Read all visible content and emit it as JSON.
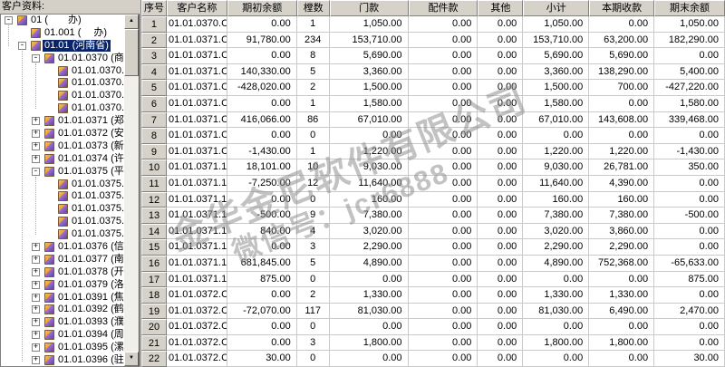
{
  "panel": {
    "title": "客户资料:"
  },
  "tree": {
    "items": [
      {
        "label": "01 (　　办)",
        "level": 0,
        "expand": "minus",
        "selected": false
      },
      {
        "label": "01.001 (　 办)",
        "level": 1,
        "expand": "none",
        "selected": false
      },
      {
        "label": "01.01 (河南省)",
        "level": 1,
        "expand": "minus",
        "selected": true
      },
      {
        "label": "01.01.0370 (商",
        "level": 2,
        "expand": "minus",
        "selected": false
      },
      {
        "label": "01.01.0370.",
        "level": 3,
        "expand": "none",
        "selected": false
      },
      {
        "label": "01.01.0370.",
        "level": 3,
        "expand": "none",
        "selected": false
      },
      {
        "label": "01.01.0370.",
        "level": 3,
        "expand": "none",
        "selected": false
      },
      {
        "label": "01.01.0370.",
        "level": 3,
        "expand": "none",
        "selected": false
      },
      {
        "label": "01.01.0371 (郑",
        "level": 2,
        "expand": "plus",
        "selected": false
      },
      {
        "label": "01.01.0372 (安",
        "level": 2,
        "expand": "plus",
        "selected": false
      },
      {
        "label": "01.01.0373 (新",
        "level": 2,
        "expand": "plus",
        "selected": false
      },
      {
        "label": "01.01.0374 (许",
        "level": 2,
        "expand": "plus",
        "selected": false
      },
      {
        "label": "01.01.0375 (平",
        "level": 2,
        "expand": "minus",
        "selected": false
      },
      {
        "label": "01.01.0375.",
        "level": 3,
        "expand": "none",
        "selected": false
      },
      {
        "label": "01.01.0375.",
        "level": 3,
        "expand": "none",
        "selected": false
      },
      {
        "label": "01.01.0375.",
        "level": 3,
        "expand": "none",
        "selected": false
      },
      {
        "label": "01.01.0375.",
        "level": 3,
        "expand": "none",
        "selected": false
      },
      {
        "label": "01.01.0375.",
        "level": 3,
        "expand": "none",
        "selected": false
      },
      {
        "label": "01.01.0376 (信",
        "level": 2,
        "expand": "plus",
        "selected": false
      },
      {
        "label": "01.01.0377 (南",
        "level": 2,
        "expand": "plus",
        "selected": false
      },
      {
        "label": "01.01.0378 (开",
        "level": 2,
        "expand": "plus",
        "selected": false
      },
      {
        "label": "01.01.0379 (洛",
        "level": 2,
        "expand": "plus",
        "selected": false
      },
      {
        "label": "01.01.0391 (焦",
        "level": 2,
        "expand": "plus",
        "selected": false
      },
      {
        "label": "01.01.0392 (鹤",
        "level": 2,
        "expand": "plus",
        "selected": false
      },
      {
        "label": "01.01.0393 (濮",
        "level": 2,
        "expand": "plus",
        "selected": false
      },
      {
        "label": "01.01.0394 (周",
        "level": 2,
        "expand": "plus",
        "selected": false
      },
      {
        "label": "01.01.0395 (漯",
        "level": 2,
        "expand": "plus",
        "selected": false
      },
      {
        "label": "01.01.0396 (驻",
        "level": 2,
        "expand": "plus",
        "selected": false
      }
    ]
  },
  "table": {
    "columns": [
      "序号",
      "客户名称",
      "期初余额",
      "樘数",
      "门款",
      "配件款",
      "其他",
      "小计",
      "本期收款",
      "期末余额"
    ],
    "rows": [
      [
        "1",
        "01.01.0370.C",
        "0.00",
        "1",
        "1,050.00",
        "0.00",
        "0.00",
        "1,050.00",
        "0.00",
        "1,050.00"
      ],
      [
        "2",
        "01.01.0371.C",
        "91,780.00",
        "234",
        "153,710.00",
        "0.00",
        "0.00",
        "153,710.00",
        "63,200.00",
        "182,290.00"
      ],
      [
        "3",
        "01.01.0371.C",
        "0.00",
        "8",
        "5,690.00",
        "0.00",
        "0.00",
        "5,690.00",
        "5,690.00",
        "0.00"
      ],
      [
        "4",
        "01.01.0371.C",
        "140,330.00",
        "5",
        "3,360.00",
        "0.00",
        "0.00",
        "3,360.00",
        "138,290.00",
        "5,400.00"
      ],
      [
        "5",
        "01.01.0371.C",
        "-428,020.00",
        "2",
        "1,500.00",
        "0.00",
        "0.00",
        "1,500.00",
        "700.00",
        "-427,220.00"
      ],
      [
        "6",
        "01.01.0371.C",
        "0.00",
        "1",
        "1,580.00",
        "0.00",
        "0.00",
        "1,580.00",
        "0.00",
        "1,580.00"
      ],
      [
        "7",
        "01.01.0371.C",
        "416,066.00",
        "86",
        "67,010.00",
        "0.00",
        "0.00",
        "67,010.00",
        "143,608.00",
        "339,468.00"
      ],
      [
        "8",
        "01.01.0371.C",
        "0.00",
        "0",
        "0.00",
        "0.00",
        "0.00",
        "0.00",
        "0.00",
        "0.00"
      ],
      [
        "9",
        "01.01.0371.C",
        "-1,430.00",
        "1",
        "1,220.00",
        "0.00",
        "0.00",
        "1,220.00",
        "1,220.00",
        "-1,430.00"
      ],
      [
        "10",
        "01.01.0371.1",
        "18,101.00",
        "10",
        "9,030.00",
        "0.00",
        "0.00",
        "9,030.00",
        "26,781.00",
        "350.00"
      ],
      [
        "11",
        "01.01.0371.1",
        "-7,250.00",
        "12",
        "11,640.00",
        "0.00",
        "0.00",
        "11,640.00",
        "4,390.00",
        "0.00"
      ],
      [
        "12",
        "01.01.0371.1",
        "0.00",
        "0",
        "160.00",
        "0.00",
        "0.00",
        "160.00",
        "160.00",
        "0.00"
      ],
      [
        "13",
        "01.01.0371.1",
        "-500.00",
        "9",
        "7,380.00",
        "0.00",
        "0.00",
        "7,380.00",
        "7,380.00",
        "-500.00"
      ],
      [
        "14",
        "01.01.0371.1",
        "840.00",
        "4",
        "3,020.00",
        "0.00",
        "0.00",
        "3,020.00",
        "3,860.00",
        "0.00"
      ],
      [
        "15",
        "01.01.0371.1",
        "0.00",
        "3",
        "2,290.00",
        "0.00",
        "0.00",
        "2,290.00",
        "2,290.00",
        "0.00"
      ],
      [
        "16",
        "01.01.0371.1",
        "681,845.00",
        "5",
        "4,890.00",
        "0.00",
        "0.00",
        "4,890.00",
        "752,368.00",
        "-65,633.00"
      ],
      [
        "17",
        "01.01.0371.1",
        "875.00",
        "0",
        "0.00",
        "0.00",
        "0.00",
        "0.00",
        "0.00",
        "875.00"
      ],
      [
        "18",
        "01.01.0372.C",
        "0.00",
        "2",
        "1,330.00",
        "0.00",
        "0.00",
        "1,330.00",
        "1,330.00",
        "0.00"
      ],
      [
        "19",
        "01.01.0372.C",
        "-72,070.00",
        "117",
        "81,030.00",
        "0.00",
        "0.00",
        "81,030.00",
        "6,490.00",
        "2,470.00"
      ],
      [
        "20",
        "01.01.0372.C",
        "0.00",
        "0",
        "0.00",
        "0.00",
        "0.00",
        "0.00",
        "0.00",
        "0.00"
      ],
      [
        "21",
        "01.01.0372.C",
        "0.00",
        "3",
        "1,800.00",
        "0.00",
        "0.00",
        "1,800.00",
        "1,800.00",
        "0.00"
      ],
      [
        "22",
        "01.01.0372.C",
        "30.00",
        "0",
        "0.00",
        "0.00",
        "0.00",
        "0.00",
        "0.00",
        "30.00"
      ]
    ]
  },
  "watermark": {
    "line1": "金华金尼软件有限公司",
    "line2": "微信号：jcr6888"
  },
  "colors": {
    "selection": "#0a246a",
    "chrome": "#d4d0c8",
    "gridline": "#c9c9c9",
    "watermark": "#8c8c8c"
  }
}
